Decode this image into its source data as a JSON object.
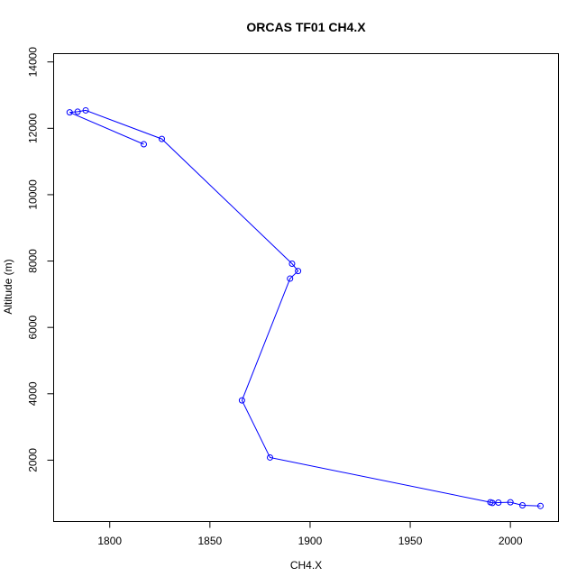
{
  "chart_data": {
    "type": "line",
    "title": "ORCAS TF01 CH4.X",
    "xlabel": "CH4.X",
    "ylabel": "Altitude (m)",
    "xlim": [
      1772,
      2024
    ],
    "ylim": [
      150,
      14250
    ],
    "x_ticks": [
      1800,
      1850,
      1900,
      1950,
      2000
    ],
    "y_ticks": [
      2000,
      4000,
      6000,
      8000,
      10000,
      12000,
      14000
    ],
    "grid": false,
    "legend": "none",
    "colors": {
      "series": "#0000ff",
      "axes": "#000000"
    },
    "series": [
      {
        "x": [
          2015,
          2006,
          2000,
          1994,
          1991,
          1990,
          1880,
          1866,
          1890,
          1894,
          1891,
          1826,
          1788,
          1784,
          1780,
          1817
        ],
        "y": [
          620,
          640,
          730,
          720,
          710,
          730,
          2080,
          3800,
          7470,
          7700,
          7920,
          11680,
          12540,
          12500,
          12480,
          11520
        ]
      }
    ]
  }
}
